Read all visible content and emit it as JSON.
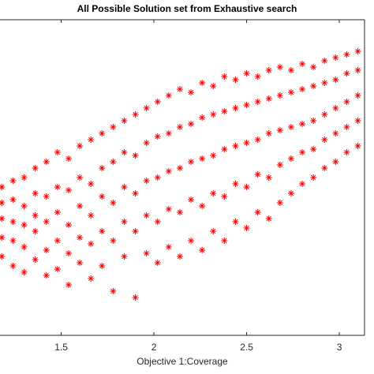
{
  "chart_data": {
    "type": "scatter",
    "title": "All Possible Solution set from Exhaustive search",
    "x_label": "Objective 1:Coverage",
    "color": "#ff0000",
    "xlim": [
      1.17,
      3.136
    ],
    "ylim": [
      0,
      100
    ],
    "xticks": [
      1.5,
      2,
      2.5,
      3
    ],
    "x": [
      1.18,
      1.18,
      1.18,
      1.18,
      1.18,
      1.24,
      1.24,
      1.24,
      1.24,
      1.24,
      1.3,
      1.3,
      1.3,
      1.3,
      1.3,
      1.36,
      1.36,
      1.36,
      1.36,
      1.36,
      1.42,
      1.42,
      1.42,
      1.42,
      1.42,
      1.48,
      1.48,
      1.48,
      1.48,
      1.48,
      1.54,
      1.54,
      1.54,
      1.54,
      1.54,
      1.6,
      1.6,
      1.6,
      1.6,
      1.6,
      1.66,
      1.66,
      1.66,
      1.66,
      1.66,
      1.72,
      1.72,
      1.72,
      1.72,
      1.72,
      1.78,
      1.78,
      1.78,
      1.78,
      1.78,
      1.84,
      1.84,
      1.84,
      1.84,
      1.84,
      1.9,
      1.9,
      1.9,
      1.9,
      1.9,
      1.96,
      1.96,
      1.96,
      1.96,
      1.96,
      2.02,
      2.02,
      2.02,
      2.02,
      2.02,
      2.08,
      2.08,
      2.08,
      2.08,
      2.08,
      2.14,
      2.14,
      2.14,
      2.14,
      2.14,
      2.2,
      2.2,
      2.2,
      2.2,
      2.2,
      2.26,
      2.26,
      2.26,
      2.26,
      2.26,
      2.32,
      2.32,
      2.32,
      2.32,
      2.32,
      2.38,
      2.38,
      2.38,
      2.38,
      2.38,
      2.44,
      2.44,
      2.44,
      2.44,
      2.44,
      2.5,
      2.5,
      2.5,
      2.5,
      2.5,
      2.56,
      2.56,
      2.56,
      2.56,
      2.56,
      2.62,
      2.62,
      2.62,
      2.62,
      2.62,
      2.68,
      2.68,
      2.68,
      2.68,
      2.68,
      2.74,
      2.74,
      2.74,
      2.74,
      2.74,
      2.8,
      2.8,
      2.8,
      2.8,
      2.8,
      2.86,
      2.86,
      2.86,
      2.86,
      2.86,
      2.92,
      2.92,
      2.92,
      2.92,
      2.92,
      2.98,
      2.98,
      2.98,
      2.98,
      2.98,
      3.04,
      3.04,
      3.04,
      3.04,
      3.04,
      3.1,
      3.1,
      3.1,
      3.1,
      3.1
    ],
    "values": [
      25,
      31,
      37,
      42,
      47,
      22,
      30,
      36,
      43,
      49,
      20,
      28,
      35,
      41,
      50,
      24,
      33,
      38,
      45,
      53,
      19,
      27,
      36,
      44,
      55,
      21,
      30,
      39,
      47,
      58,
      16,
      26,
      35,
      46,
      56,
      23,
      31,
      41,
      50,
      60,
      18,
      29,
      38,
      48,
      62,
      22,
      33,
      44,
      53,
      64,
      14,
      30,
      42,
      55,
      66,
      25,
      36,
      47,
      58,
      68,
      12,
      33,
      45,
      57,
      70,
      26,
      38,
      49,
      61,
      72,
      23,
      36,
      50,
      63,
      74,
      28,
      40,
      52,
      64,
      76,
      25,
      39,
      53,
      66,
      78,
      30,
      43,
      55,
      67,
      77,
      27,
      41,
      56,
      69,
      80,
      33,
      45,
      57,
      70,
      79,
      30,
      44,
      59,
      71,
      82,
      36,
      48,
      60,
      72,
      81,
      34,
      47,
      61,
      73,
      83,
      39,
      51,
      62,
      74,
      82,
      37,
      50,
      64,
      75,
      84,
      42,
      54,
      65,
      76,
      85,
      45,
      56,
      66,
      77,
      84,
      48,
      58,
      67,
      78,
      86,
      50,
      59,
      68,
      79,
      85,
      53,
      62,
      70,
      80,
      87,
      55,
      64,
      72,
      81,
      88,
      58,
      66,
      74,
      83,
      89,
      60,
      68,
      76,
      84,
      90
    ]
  }
}
